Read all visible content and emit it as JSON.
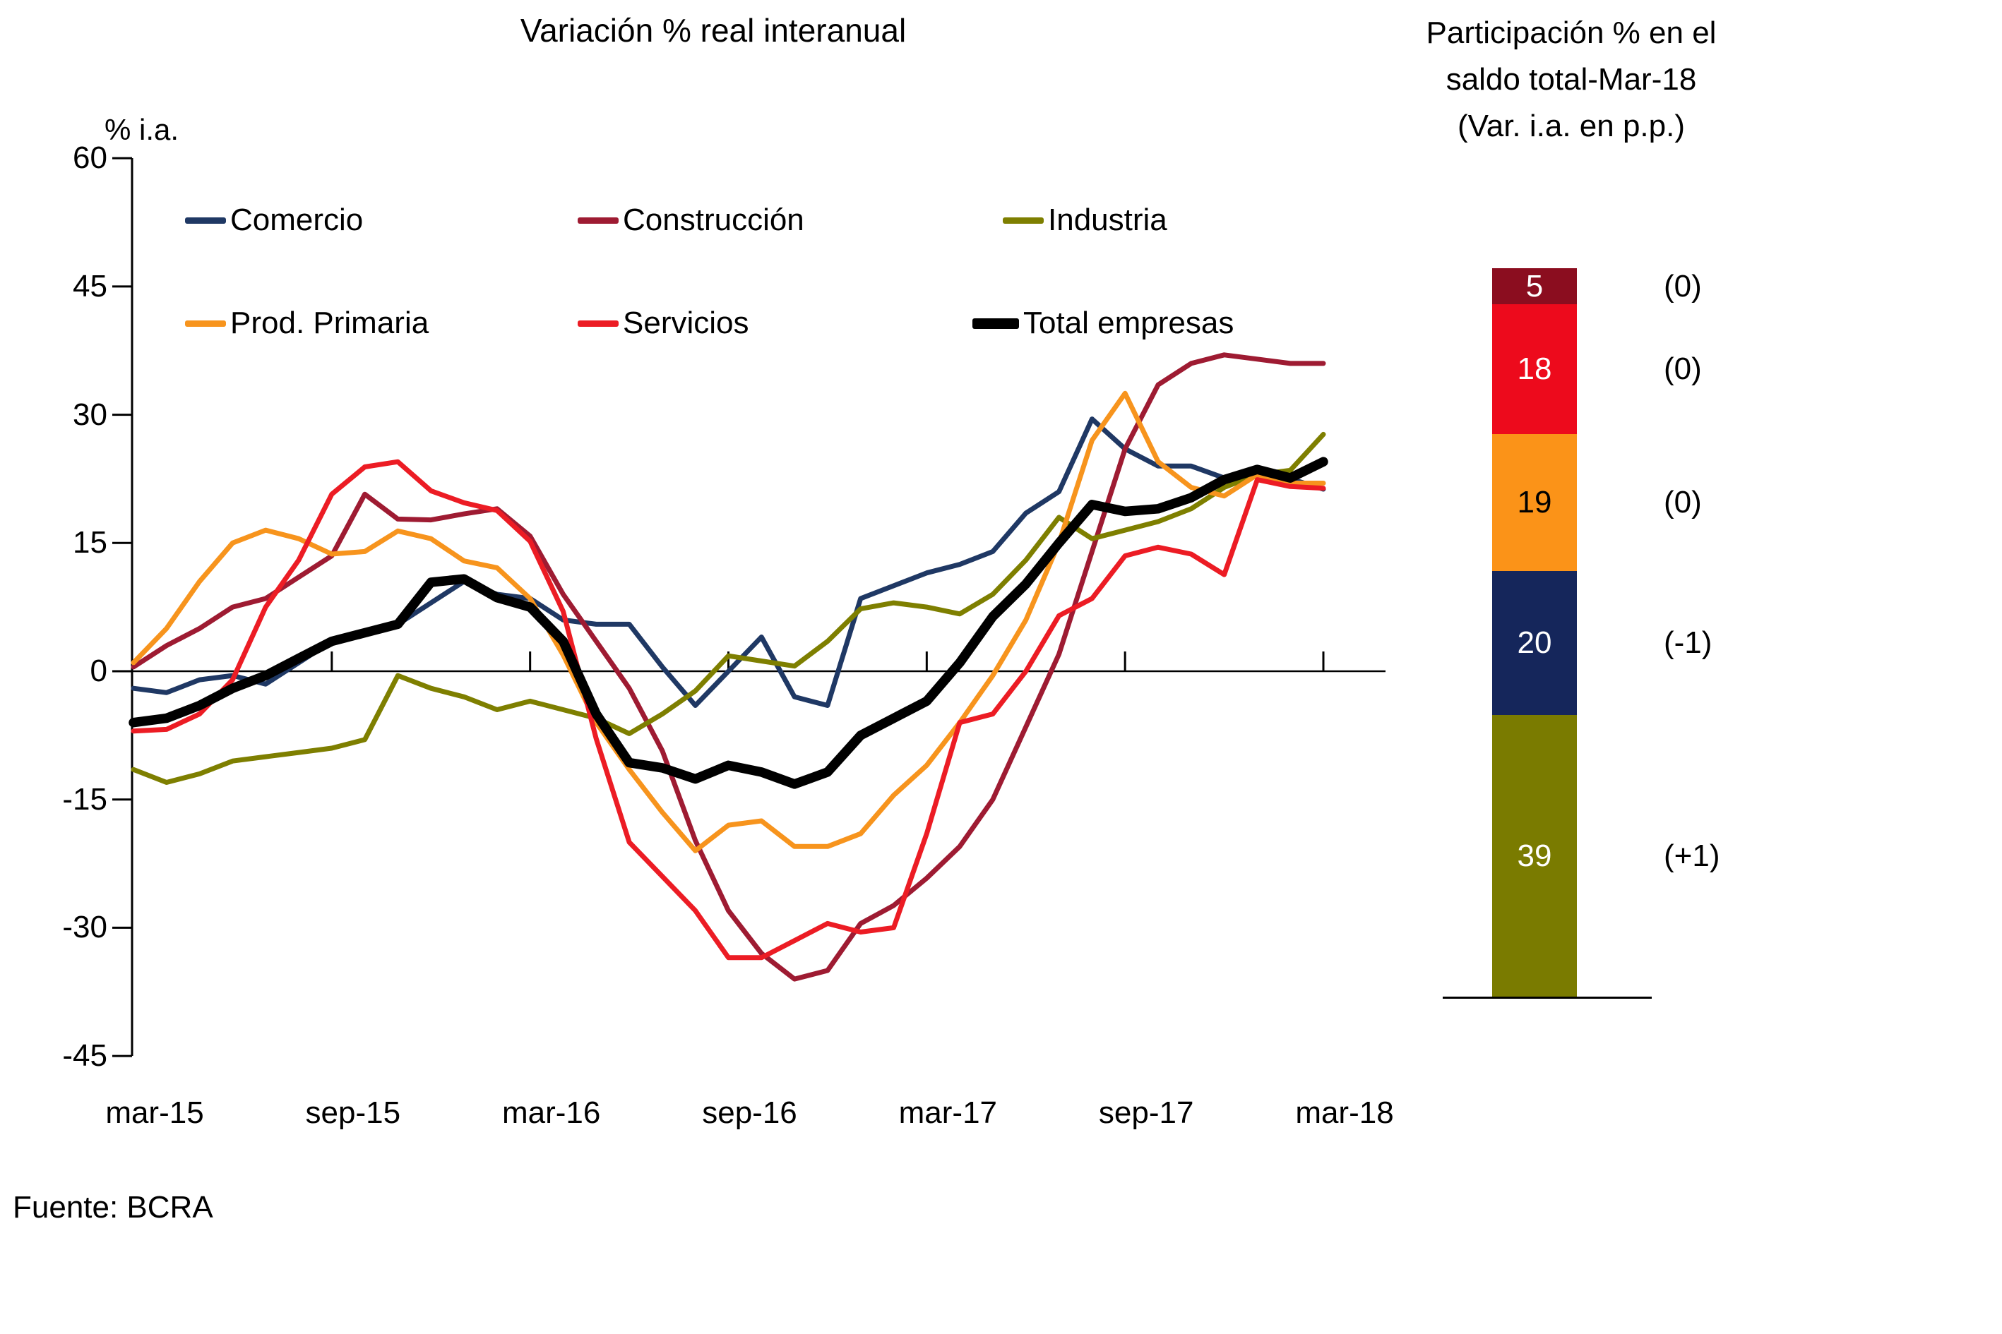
{
  "page": {
    "background": "#ffffff",
    "source_note": "Fuente: BCRA"
  },
  "chart_data": [
    {
      "type": "line",
      "title": "Variación % real interanual",
      "ylabel": "% i.a.",
      "ylim": [
        -45,
        60
      ],
      "yticks": [
        60,
        45,
        30,
        15,
        0,
        -15,
        -30,
        -45
      ],
      "xtick_labels": [
        "mar-15",
        "sep-15",
        "mar-16",
        "sep-16",
        "mar-17",
        "sep-17",
        "mar-18"
      ],
      "grid": "zero baseline only, y-axis left, x tick marks on zero line",
      "legend_position": "inside plot, top-left, two rows",
      "x_months": [
        "mar-15",
        "abr-15",
        "may-15",
        "jun-15",
        "jul-15",
        "ago-15",
        "sep-15",
        "oct-15",
        "nov-15",
        "dic-15",
        "ene-16",
        "feb-16",
        "mar-16",
        "abr-16",
        "may-16",
        "jun-16",
        "jul-16",
        "ago-16",
        "sep-16",
        "oct-16",
        "nov-16",
        "dic-16",
        "ene-17",
        "feb-17",
        "mar-17",
        "abr-17",
        "may-17",
        "jun-17",
        "jul-17",
        "ago-17",
        "sep-17",
        "oct-17",
        "nov-17",
        "dic-17",
        "ene-18",
        "feb-18",
        "mar-18"
      ],
      "series": [
        {
          "name": "Comercio",
          "color": "#1F3864",
          "line_width": 7,
          "values": [
            -2,
            -2.5,
            -1,
            -0.5,
            -1.5,
            1,
            3.5,
            4.5,
            5.5,
            8,
            10.5,
            9,
            8.5,
            6,
            5.5,
            5.5,
            0.5,
            -4,
            0,
            4,
            -3,
            -4,
            8.5,
            10,
            11.5,
            12.5,
            14,
            18.5,
            21,
            29.5,
            26,
            24,
            24,
            22.6,
            23.5,
            22.5,
            21.3
          ]
        },
        {
          "name": "Construcción",
          "color": "#9E1B32",
          "line_width": 7,
          "values": [
            0.5,
            3,
            5,
            7.5,
            8.5,
            11,
            13.5,
            20.7,
            17.8,
            17.7,
            18.4,
            19,
            15.8,
            9,
            3.5,
            -2,
            -9.3,
            -19.8,
            -28,
            -33,
            -36,
            -35,
            -29.5,
            -27.4,
            -24.2,
            -20.5,
            -15,
            -6.5,
            2,
            14,
            26,
            33.5,
            36,
            37,
            36.5,
            36,
            36
          ]
        },
        {
          "name": "Industria",
          "color": "#7E7F00",
          "line_width": 7,
          "values": [
            -11.5,
            -13,
            -12,
            -10.5,
            -10,
            -9.5,
            -9,
            -8,
            -0.5,
            -2,
            -3,
            -4.5,
            -3.5,
            -4.5,
            -5.5,
            -7.3,
            -5,
            -2.3,
            1.8,
            1.2,
            0.6,
            3.5,
            7.3,
            8,
            7.5,
            6.7,
            9,
            13,
            18,
            15.5,
            16.5,
            17.5,
            19,
            21.5,
            23,
            23.5,
            27.7
          ]
        },
        {
          "name": "Prod. Primaria",
          "color": "#F7941D",
          "line_width": 7,
          "values": [
            1,
            5,
            10.5,
            15,
            16.5,
            15.5,
            13.7,
            14,
            16.4,
            15.5,
            12.9,
            12.1,
            8.5,
            1.9,
            -6,
            -11.5,
            -16.5,
            -21,
            -18,
            -17.5,
            -20.5,
            -20.5,
            -19,
            -14.5,
            -11,
            -6,
            -0.5,
            6,
            15,
            27,
            32.5,
            24.5,
            21.5,
            20.5,
            23,
            22,
            22
          ]
        },
        {
          "name": "Servicios",
          "color": "#EC1C24",
          "line_width": 7,
          "values": [
            -7,
            -6.8,
            -5,
            -1,
            7.5,
            13,
            20.7,
            23.9,
            24.5,
            21.1,
            19.7,
            18.8,
            15.2,
            7,
            -7.9,
            -20,
            -24,
            -28,
            -33.5,
            -33.5,
            -31.5,
            -29.5,
            -30.5,
            -30,
            -19,
            -6,
            -5,
            0,
            6.5,
            8.5,
            13.5,
            14.5,
            13.7,
            11.3,
            22.4,
            21.6,
            21.4
          ]
        },
        {
          "name": "Total empresas",
          "color": "#000000",
          "line_width": 13.5,
          "values": [
            -6,
            -5.5,
            -4,
            -2,
            -0.5,
            1.5,
            3.5,
            4.5,
            5.5,
            10.4,
            10.8,
            8.6,
            7.5,
            3.5,
            -5,
            -10.7,
            -11.3,
            -12.6,
            -11,
            -11.8,
            -13.2,
            -11.8,
            -7.5,
            -5.5,
            -3.5,
            1,
            6.4,
            10.2,
            15,
            19.5,
            18.7,
            19,
            20.3,
            22.4,
            23.6,
            22.6,
            24.5
          ]
        }
      ]
    },
    {
      "type": "bar",
      "subtype": "stacked_single_column",
      "title_lines": [
        "Participación % en el",
        "saldo total-Mar-18",
        "(Var. i.a. en p.p.)"
      ],
      "segments_top_to_bottom": [
        {
          "sector": "Construcción",
          "label": "5",
          "value": 5,
          "note": "(0)",
          "color": "#8B0D1F",
          "text_color": "#ffffff"
        },
        {
          "sector": "Servicios",
          "label": "18",
          "value": 18,
          "note": "(0)",
          "color": "#ED0A1C",
          "text_color": "#ffffff"
        },
        {
          "sector": "Prod. Primaria",
          "label": "19",
          "value": 19,
          "note": "(0)",
          "color": "#FB9318",
          "text_color": "#000000"
        },
        {
          "sector": "Comercio",
          "label": "20",
          "value": 20,
          "note": "(-1)",
          "color": "#15265B",
          "text_color": "#ffffff"
        },
        {
          "sector": "Industria",
          "label": "39",
          "value": 39,
          "note": "(+1)",
          "color": "#7A7B00",
          "text_color": "#ffffff"
        }
      ]
    }
  ]
}
